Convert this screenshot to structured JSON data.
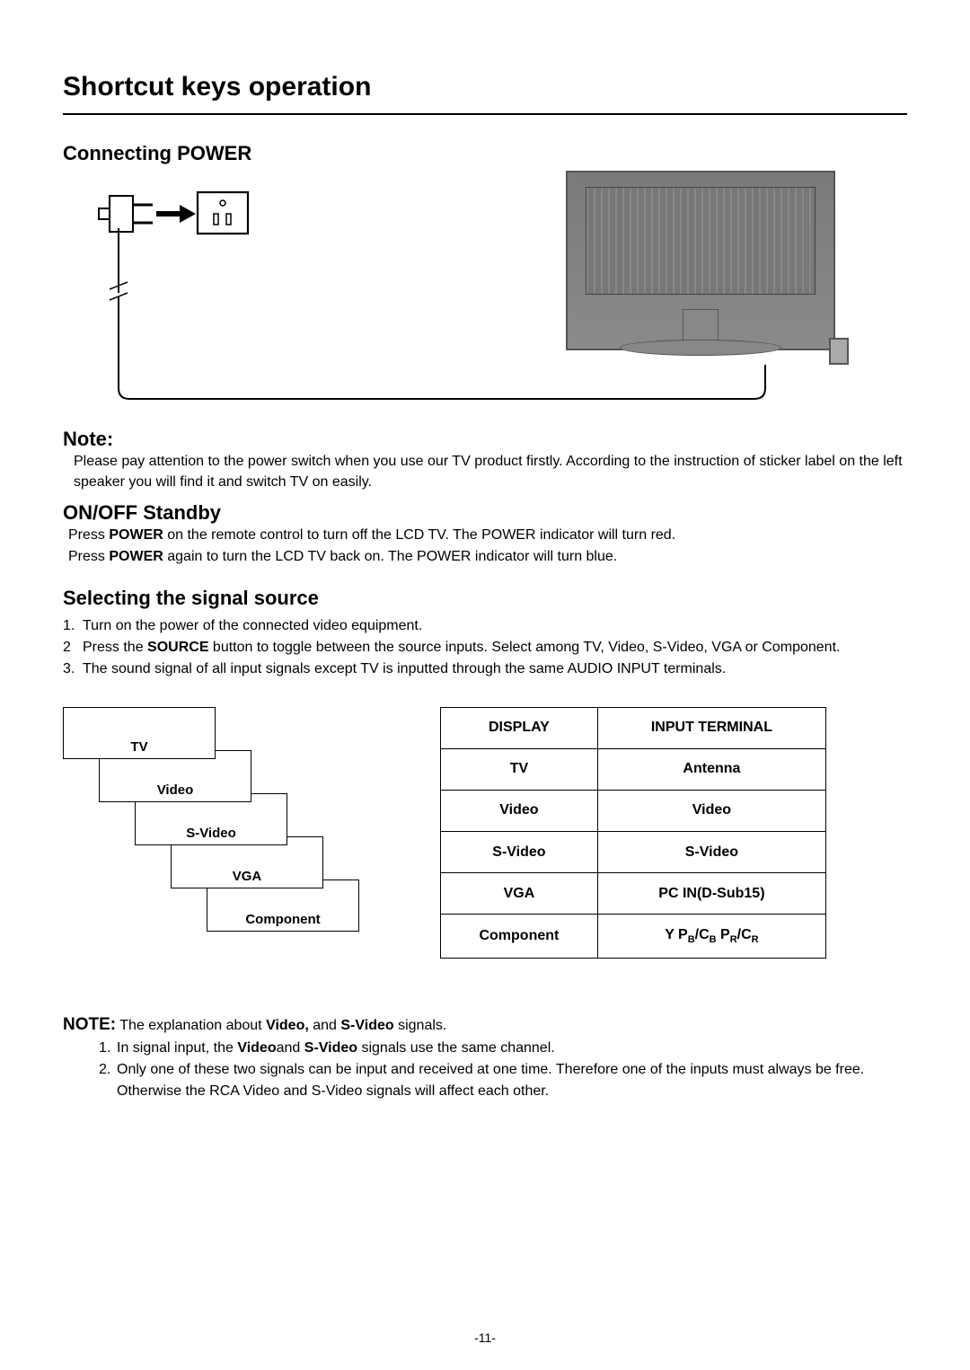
{
  "page_title": "Shortcut keys operation",
  "section_power": "Connecting POWER",
  "note_heading": "Note:",
  "note_text": "Please pay attention to the power switch when you use our TV product firstly. According to  the instruction of sticker label on the left speaker you will find it and switch TV on easily.",
  "section_standby": "ON/OFF Standby",
  "standby_line1_pre": "Press ",
  "standby_power": "POWER",
  "standby_line1_post": " on the remote control to turn off the LCD TV. The POWER indicator will turn red.",
  "standby_line2_pre": "Press ",
  "standby_line2_post": " again to turn the LCD TV back on. The POWER indicator will turn blue.",
  "section_source": "Selecting the signal source",
  "src_list": [
    {
      "n": "1.",
      "t": "Turn on the power of the connected video equipment."
    },
    {
      "n": "2",
      "t_pre": "Press the ",
      "t_b": "SOURCE",
      "t_post": " button to toggle between the source inputs. Select among TV, Video, S-Video,  VGA or Component."
    },
    {
      "n": "3.",
      "t": "The sound signal of all input signals except TV  is inputted through the same AUDIO INPUT terminals."
    }
  ],
  "cascade": {
    "boxes": [
      "TV",
      "Video",
      "S-Video",
      "VGA",
      "Component"
    ],
    "step_x": 40,
    "step_y": 48
  },
  "table": {
    "headers": [
      "DISPLAY",
      "INPUT TERMINAL"
    ],
    "rows": [
      [
        "TV",
        "Antenna"
      ],
      [
        "Video",
        "Video"
      ],
      [
        "S-Video",
        "S-Video"
      ],
      [
        "VGA",
        "PC IN(D-Sub15)"
      ],
      [
        "Component",
        "Y  P_B/C_B  P_R/C_R"
      ]
    ]
  },
  "note2_head": "NOTE:",
  "note2_intro_pre": " The explanation about ",
  "note2_intro_b1": "Video,",
  "note2_intro_mid": " and ",
  "note2_intro_b2": "S-Video",
  "note2_intro_post": " signals.",
  "note2_list": [
    {
      "n": "1.",
      "pre": "In signal input, the  ",
      "b1": "Video",
      "mid": "and ",
      "b2": "S-Video",
      "post": " signals use the  same  channel."
    },
    {
      "n": "2.",
      "t": "Only one of these two  signals can be input and received at one time. Therefore one of the inputs must always be free. Otherwise the RCA Video and S-Video signals will affect each other."
    }
  ],
  "page_number": "-11-",
  "colors": {
    "rule": "#000000",
    "tv_body": "#7a7a7a"
  }
}
